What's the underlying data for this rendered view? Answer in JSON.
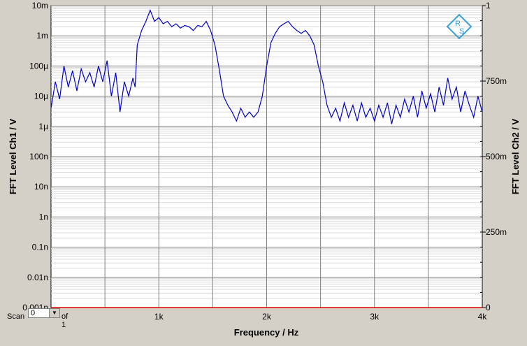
{
  "chart_data": {
    "type": "line",
    "xlabel": "Frequency / Hz",
    "ylabel_left": "FFT Level Ch1 / V",
    "ylabel_right": "FFT Level Ch2 / V",
    "xlim": [
      0,
      4000
    ],
    "x_ticks": [
      {
        "value": 1000,
        "label": "1k"
      },
      {
        "value": 2000,
        "label": "2k"
      },
      {
        "value": 3000,
        "label": "3k"
      },
      {
        "value": 4000,
        "label": "4k"
      }
    ],
    "y_left": {
      "scale": "log",
      "range": [
        1e-12,
        0.01
      ],
      "ticks": [
        {
          "value": 0.01,
          "label": "10m"
        },
        {
          "value": 0.001,
          "label": "1m"
        },
        {
          "value": 0.0001,
          "label": "100µ"
        },
        {
          "value": 1e-05,
          "label": "10µ"
        },
        {
          "value": 1e-06,
          "label": "1µ"
        },
        {
          "value": 1e-07,
          "label": "100n"
        },
        {
          "value": 1e-08,
          "label": "10n"
        },
        {
          "value": 1e-09,
          "label": "1n"
        },
        {
          "value": 1e-10,
          "label": "0.1n"
        },
        {
          "value": 1e-11,
          "label": "0.01n"
        },
        {
          "value": 1e-12,
          "label": "0.001n"
        }
      ]
    },
    "y_right": {
      "scale": "linear",
      "range": [
        0,
        1
      ],
      "ticks": [
        {
          "value": 1,
          "label": "1"
        },
        {
          "value": 0.75,
          "label": "750m"
        },
        {
          "value": 0.5,
          "label": "500m"
        },
        {
          "value": 0.25,
          "label": "250m"
        },
        {
          "value": 0,
          "label": "0"
        }
      ]
    },
    "grid": true,
    "series": [
      {
        "axis": "left",
        "color": "#0000c8",
        "x": [
          0,
          40,
          80,
          120,
          160,
          200,
          240,
          280,
          320,
          360,
          400,
          440,
          480,
          520,
          560,
          600,
          640,
          680,
          720,
          760,
          780,
          800,
          840,
          880,
          920,
          960,
          1000,
          1040,
          1080,
          1120,
          1160,
          1200,
          1240,
          1280,
          1320,
          1360,
          1400,
          1440,
          1480,
          1520,
          1560,
          1600,
          1640,
          1680,
          1720,
          1760,
          1800,
          1840,
          1880,
          1920,
          1960,
          2000,
          2040,
          2080,
          2120,
          2160,
          2200,
          2240,
          2280,
          2320,
          2360,
          2400,
          2440,
          2480,
          2520,
          2560,
          2600,
          2640,
          2680,
          2720,
          2760,
          2800,
          2840,
          2880,
          2920,
          2960,
          3000,
          3040,
          3080,
          3120,
          3160,
          3200,
          3240,
          3280,
          3320,
          3360,
          3400,
          3440,
          3480,
          3520,
          3560,
          3600,
          3640,
          3680,
          3720,
          3760,
          3800,
          3840,
          3880,
          3920,
          3960,
          4000
        ],
        "y": [
          4e-06,
          3e-05,
          8e-06,
          0.0001,
          2e-05,
          7e-05,
          1.5e-05,
          8e-05,
          3e-05,
          6e-05,
          2e-05,
          0.0001,
          3e-05,
          0.00015,
          1e-05,
          6e-05,
          3e-06,
          3e-05,
          1e-05,
          4e-05,
          2e-05,
          0.0005,
          0.0015,
          0.003,
          0.007,
          0.003,
          0.004,
          0.0025,
          0.003,
          0.002,
          0.0025,
          0.0018,
          0.0022,
          0.002,
          0.0015,
          0.0022,
          0.002,
          0.003,
          0.0015,
          0.0005,
          8e-05,
          1e-05,
          5e-06,
          3e-06,
          1.5e-06,
          4e-06,
          2e-06,
          3e-06,
          2e-06,
          3e-06,
          1e-05,
          0.0001,
          0.0006,
          0.0012,
          0.002,
          0.0025,
          0.003,
          0.002,
          0.0015,
          0.0012,
          0.0015,
          0.001,
          0.0005,
          0.0001,
          3e-05,
          5e-06,
          2e-06,
          4e-06,
          1.5e-06,
          6e-06,
          2e-06,
          5e-06,
          1.5e-06,
          6e-06,
          2e-06,
          4e-06,
          1.5e-06,
          5e-06,
          2e-06,
          6e-06,
          1.2e-06,
          5e-06,
          2e-06,
          8e-06,
          3e-06,
          1e-05,
          2e-06,
          1.5e-05,
          4e-06,
          1.2e-05,
          3e-06,
          2e-05,
          5e-06,
          4e-05,
          8e-06,
          2e-05,
          3e-06,
          1.5e-05,
          5e-06,
          2e-06,
          1e-05,
          3e-06
        ]
      },
      {
        "axis": "right",
        "color": "#e00000",
        "x": [
          0,
          4000
        ],
        "y": [
          0,
          0
        ]
      }
    ]
  },
  "scan": {
    "label": "Scan",
    "value": "0",
    "of_text": "of 1"
  },
  "logo": {
    "text_r": "R",
    "text_s": "S",
    "color": "#3aa0d8"
  }
}
